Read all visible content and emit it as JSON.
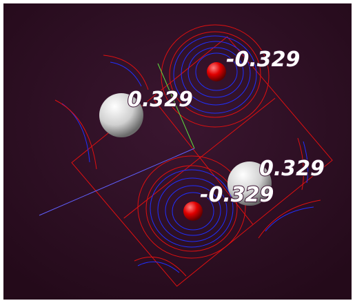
{
  "labels": [
    "-0.329",
    "0.329",
    "0.329",
    "-0.329"
  ]
}
